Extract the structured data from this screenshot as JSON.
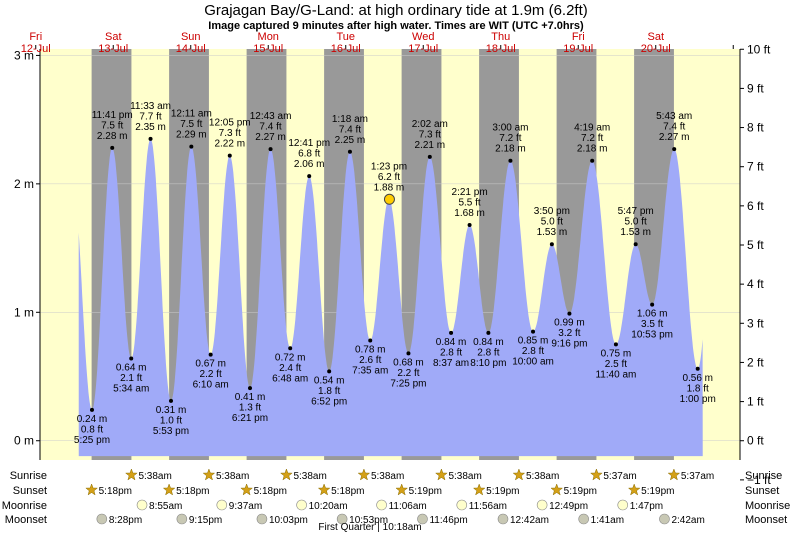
{
  "header": {
    "title": "Grajagan Bay/G-Land: at high  ordinary tide at 1.9m (6.2ft)",
    "subtitle": "Image captured 9 minutes after high water. Times are WIT (UTC +7.0hrs)"
  },
  "days": [
    {
      "dow": "Fri",
      "date": "12-Jul"
    },
    {
      "dow": "Sat",
      "date": "13-Jul"
    },
    {
      "dow": "Sun",
      "date": "14-Jul"
    },
    {
      "dow": "Mon",
      "date": "15-Jul"
    },
    {
      "dow": "Tue",
      "date": "16-Jul"
    },
    {
      "dow": "Wed",
      "date": "17-Jul"
    },
    {
      "dow": "Thu",
      "date": "18-Jul"
    },
    {
      "dow": "Fri",
      "date": "19-Jul"
    },
    {
      "dow": "Sat",
      "date": "20-Jul"
    }
  ],
  "chart_data": {
    "type": "area",
    "ylabel_left": "m",
    "ylabel_right": "ft",
    "y_ticks_m": [
      "0 m",
      "1 m",
      "2 m",
      "3 m"
    ],
    "y_ticks_ft": [
      "−1 ft",
      "0 ft",
      "1 ft",
      "2 ft",
      "3 ft",
      "4 ft",
      "5 ft",
      "6 ft",
      "7 ft",
      "8 ft",
      "9 ft",
      "10 ft"
    ],
    "ylim_m": [
      -0.15,
      3.05
    ],
    "series": [
      {
        "values": [
          {
            "time": "Fri 12-Jul 5:25 pm",
            "height_m": 0.24,
            "type": "low",
            "lines": [
              "0.24 m",
              "0.8 ft",
              "5:25 pm"
            ]
          },
          {
            "time": "Fri 12-Jul 11:41 pm",
            "height_m": 2.28,
            "type": "high",
            "lines": [
              "11:41 pm",
              "7.5 ft",
              "2.28 m"
            ]
          },
          {
            "time": "Sat 13-Jul 5:34 am",
            "height_m": 0.64,
            "type": "low",
            "lines": [
              "0.64 m",
              "2.1 ft",
              "5:34 am"
            ]
          },
          {
            "time": "Sat 13-Jul 11:33 am",
            "height_m": 2.35,
            "type": "high",
            "lines": [
              "11:33 am",
              "7.7 ft",
              "2.35 m"
            ]
          },
          {
            "time": "Sat 13-Jul 5:53 pm",
            "height_m": 0.31,
            "type": "low",
            "lines": [
              "0.31 m",
              "1.0 ft",
              "5:53 pm"
            ]
          },
          {
            "time": "Sun 14-Jul 12:11 am",
            "height_m": 2.29,
            "type": "high",
            "lines": [
              "12:11 am",
              "7.5 ft",
              "2.29 m"
            ]
          },
          {
            "time": "Sun 14-Jul 6:10 am",
            "height_m": 0.67,
            "type": "low",
            "lines": [
              "0.67 m",
              "2.2 ft",
              "6:10 am"
            ]
          },
          {
            "time": "Sun 14-Jul 12:05 pm",
            "height_m": 2.22,
            "type": "high",
            "lines": [
              "12:05 pm",
              "7.3 ft",
              "2.22 m"
            ]
          },
          {
            "time": "Sun 14-Jul 6:21 pm",
            "height_m": 0.41,
            "type": "low",
            "lines": [
              "0.41 m",
              "1.3 ft",
              "6:21 pm"
            ]
          },
          {
            "time": "Mon 15-Jul 12:43 am",
            "height_m": 2.27,
            "type": "high",
            "lines": [
              "12:43 am",
              "7.4 ft",
              "2.27 m"
            ]
          },
          {
            "time": "Mon 15-Jul 6:48 am",
            "height_m": 0.72,
            "type": "low",
            "lines": [
              "0.72 m",
              "2.4 ft",
              "6:48 am"
            ]
          },
          {
            "time": "Mon 15-Jul 12:41 pm",
            "height_m": 2.06,
            "type": "high",
            "lines": [
              "12:41 pm",
              "6.8 ft",
              "2.06 m"
            ]
          },
          {
            "time": "Mon 15-Jul 6:52 pm",
            "height_m": 0.54,
            "type": "low",
            "lines": [
              "0.54 m",
              "1.8 ft",
              "6:52 pm"
            ]
          },
          {
            "time": "Tue 16-Jul 1:18 am",
            "height_m": 2.25,
            "type": "high",
            "lines": [
              "1:18 am",
              "7.4 ft",
              "2.25 m"
            ]
          },
          {
            "time": "Tue 16-Jul 7:35 am",
            "height_m": 0.78,
            "type": "low",
            "lines": [
              "0.78 m",
              "2.6 ft",
              "7:35 am"
            ]
          },
          {
            "time": "Tue 16-Jul 1:23 pm",
            "height_m": 1.88,
            "type": "high",
            "lines": [
              "1:23 pm",
              "6.2 ft",
              "1.88 m"
            ]
          },
          {
            "time": "Tue 16-Jul 7:25 pm",
            "height_m": 0.68,
            "type": "low",
            "lines": [
              "0.68 m",
              "2.2 ft",
              "7:25 pm"
            ]
          },
          {
            "time": "Wed 17-Jul 2:02 am",
            "height_m": 2.21,
            "type": "high",
            "lines": [
              "2:02 am",
              "7.3 ft",
              "2.21 m"
            ]
          },
          {
            "time": "Wed 17-Jul 8:37 am",
            "height_m": 0.84,
            "type": "low",
            "lines": [
              "0.84 m",
              "2.8 ft",
              "8:37 am"
            ]
          },
          {
            "time": "Wed 17-Jul 2:21 pm",
            "height_m": 1.68,
            "type": "high",
            "lines": [
              "2:21 pm",
              "5.5 ft",
              "1.68 m"
            ]
          },
          {
            "time": "Wed 17-Jul 8:10 pm",
            "height_m": 0.84,
            "type": "low",
            "lines": [
              "0.84 m",
              "2.8 ft",
              "8:10 pm"
            ]
          },
          {
            "time": "Thu 18-Jul 3:00 am",
            "height_m": 2.18,
            "type": "high",
            "lines": [
              "3:00 am",
              "7.2 ft",
              "2.18 m"
            ]
          },
          {
            "time": "Thu 18-Jul 10:00 am",
            "height_m": 0.85,
            "type": "low",
            "lines": [
              "0.85 m",
              "2.8 ft",
              "10:00 am"
            ]
          },
          {
            "time": "Thu 18-Jul 3:50 pm",
            "height_m": 1.53,
            "type": "high",
            "lines": [
              "3:50 pm",
              "5.0 ft",
              "1.53 m"
            ]
          },
          {
            "time": "Thu 18-Jul 9:16 pm",
            "height_m": 0.99,
            "type": "low",
            "lines": [
              "0.99 m",
              "3.2 ft",
              "9:16 pm"
            ]
          },
          {
            "time": "Fri 19-Jul 4:19 am",
            "height_m": 2.18,
            "type": "high",
            "lines": [
              "4:19 am",
              "7.2 ft",
              "2.18 m"
            ]
          },
          {
            "time": "Fri 19-Jul 11:40 am",
            "height_m": 0.75,
            "type": "low",
            "lines": [
              "0.75 m",
              "2.5 ft",
              "11:40 am"
            ]
          },
          {
            "time": "Fri 19-Jul 5:47 pm",
            "height_m": 1.53,
            "type": "high",
            "lines": [
              "5:47 pm",
              "5.0 ft",
              "1.53 m"
            ]
          },
          {
            "time": "Fri 19-Jul 10:53 pm",
            "height_m": 1.06,
            "type": "low",
            "lines": [
              "1.06 m",
              "3.5 ft",
              "10:53 pm"
            ]
          },
          {
            "time": "Sat 20-Jul 5:43 am",
            "height_m": 2.27,
            "type": "high",
            "lines": [
              "5:43 am",
              "7.4 ft",
              "2.27 m"
            ]
          },
          {
            "time": "Sat 20-Jul 1:00 pm",
            "height_m": 0.56,
            "type": "low",
            "lines": [
              "0.56 m",
              "1.8 ft",
              "1:00 pm"
            ]
          }
        ]
      }
    ],
    "current": {
      "time": "Tue 16-Jul 1:32 pm",
      "height_m": 1.88
    }
  },
  "rows": {
    "sunrise": {
      "label": "Sunrise",
      "times": [
        "5:38am",
        "5:38am",
        "5:38am",
        "5:38am",
        "5:38am",
        "5:38am",
        "5:37am",
        "5:37am"
      ]
    },
    "sunset": {
      "label": "Sunset",
      "times": [
        "5:18pm",
        "5:18pm",
        "5:18pm",
        "5:18pm",
        "5:19pm",
        "5:19pm",
        "5:19pm",
        "5:19pm"
      ]
    },
    "moonrise": {
      "label": "Moonrise",
      "times": [
        "8:55am",
        "9:37am",
        "10:20am",
        "11:06am",
        "11:56am",
        "12:49pm",
        "1:47pm"
      ]
    },
    "moonset": {
      "label": "Moonset",
      "times": [
        "8:28pm",
        "9:15pm",
        "10:03pm",
        "10:53pm",
        "11:46pm",
        "12:42am",
        "1:41am",
        "2:42am"
      ]
    },
    "phase": "First Quarter | 10:18am"
  },
  "colors": {
    "day_bg": "#ffffcc",
    "night_bg": "#999999",
    "water": "#a0aaf8",
    "day_label": "#cc0000",
    "sun": "#d4a017",
    "moon_rise": "#ffffcc",
    "moon_set": "#c8c8b4"
  }
}
